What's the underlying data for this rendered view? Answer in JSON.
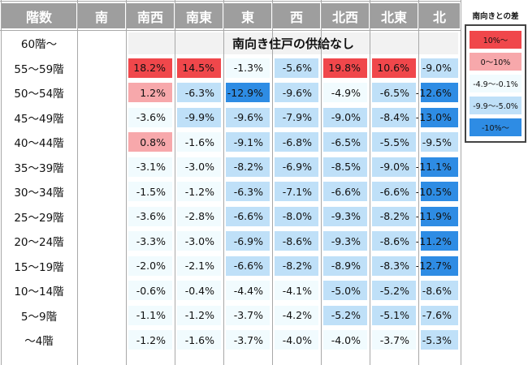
{
  "chart_data": {
    "type": "table",
    "corner_label": "階数",
    "columns": [
      "南",
      "南西",
      "南東",
      "東",
      "西",
      "北西",
      "北東",
      "北"
    ],
    "banner": "南向き住戸の供給なし",
    "rows": [
      {
        "label": "60階〜",
        "values": [
          null,
          null,
          null,
          null,
          null,
          null,
          null,
          null
        ]
      },
      {
        "label": "55〜59階",
        "values": [
          null,
          "18.2%",
          "14.5%",
          "-1.3%",
          "-5.6%",
          "19.8%",
          "10.6%",
          "-9.0%"
        ]
      },
      {
        "label": "50〜54階",
        "values": [
          null,
          "1.2%",
          "-6.3%",
          "-12.9%",
          "-9.6%",
          "-4.9%",
          "-6.5%",
          "-12.6%"
        ]
      },
      {
        "label": "45〜49階",
        "values": [
          null,
          "-3.6%",
          "-9.9%",
          "-9.6%",
          "-7.9%",
          "-9.0%",
          "-8.4%",
          "-13.0%"
        ]
      },
      {
        "label": "40〜44階",
        "values": [
          null,
          "0.8%",
          "-1.6%",
          "-9.1%",
          "-6.8%",
          "-6.5%",
          "-5.5%",
          "-9.5%"
        ]
      },
      {
        "label": "35〜39階",
        "values": [
          null,
          "-3.1%",
          "-3.0%",
          "-8.2%",
          "-6.9%",
          "-8.5%",
          "-9.0%",
          "-11.1%"
        ]
      },
      {
        "label": "30〜34階",
        "values": [
          null,
          "-1.5%",
          "-1.2%",
          "-6.3%",
          "-7.1%",
          "-6.6%",
          "-6.6%",
          "-10.5%"
        ]
      },
      {
        "label": "25〜29階",
        "values": [
          null,
          "-3.6%",
          "-2.8%",
          "-6.6%",
          "-8.0%",
          "-9.3%",
          "-8.2%",
          "-11.9%"
        ]
      },
      {
        "label": "20〜24階",
        "values": [
          null,
          "-3.3%",
          "-3.0%",
          "-6.9%",
          "-8.6%",
          "-9.3%",
          "-8.6%",
          "-11.2%"
        ]
      },
      {
        "label": "15〜19階",
        "values": [
          null,
          "-2.0%",
          "-2.1%",
          "-6.6%",
          "-8.2%",
          "-8.9%",
          "-8.3%",
          "-12.7%"
        ]
      },
      {
        "label": "10〜14階",
        "values": [
          null,
          "-0.6%",
          "-0.4%",
          "-4.4%",
          "-4.1%",
          "-5.0%",
          "-5.2%",
          "-8.6%"
        ]
      },
      {
        "label": "5〜9階",
        "values": [
          null,
          "-1.1%",
          "-1.2%",
          "-3.7%",
          "-4.2%",
          "-5.2%",
          "-5.1%",
          "-7.6%"
        ]
      },
      {
        "label": "〜4階",
        "values": [
          null,
          "-1.2%",
          "-1.6%",
          "-3.7%",
          "-4.0%",
          "-4.0%",
          "-3.7%",
          "-5.3%"
        ]
      }
    ],
    "legend": {
      "title": "南向きとの差",
      "items": [
        {
          "label": "10%〜",
          "color": "#f0474b"
        },
        {
          "label": "0〜10%",
          "color": "#f7a8ab"
        },
        {
          "label": "-4.9〜-0.1%",
          "color": "#f1fbfe"
        },
        {
          "label": "-9.9〜-5.0%",
          "color": "#bfe0f8"
        },
        {
          "label": "-10%〜",
          "color": "#2e8ce4"
        }
      ]
    },
    "colors": {
      "header_bg": "#9e9e9e",
      "high_pos": "#f0474b",
      "low_pos": "#f7a8ab",
      "small_neg": "#f1fbfe",
      "mid_neg": "#bfe0f8",
      "big_neg": "#2e8ce4"
    }
  }
}
